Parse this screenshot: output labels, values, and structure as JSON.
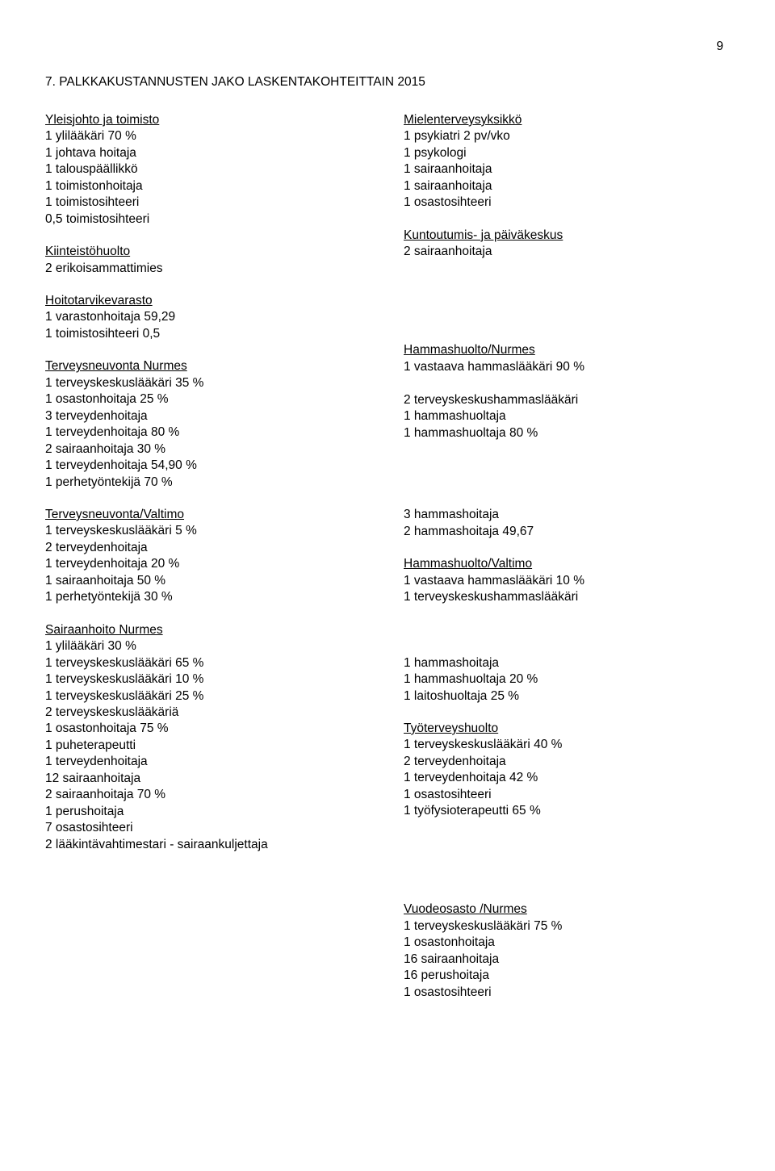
{
  "page_number": "9",
  "heading": "7. PALKKAKUSTANNUSTEN JAKO LASKENTAKOHTEITTAIN 2015",
  "left": [
    {
      "title": "Yleisjohto ja toimisto",
      "lines": [
        "1 ylilääkäri 70 %",
        "1 johtava hoitaja",
        "1 talouspäällikkö",
        "1 toimistonhoitaja",
        "1 toimistosihteeri",
        "0,5 toimistosihteeri"
      ]
    },
    {
      "title": "Kiinteistöhuolto",
      "lines": [
        "2 erikoisammattimies"
      ]
    },
    {
      "title": "Hoitotarvikevarasto",
      "lines": [
        "1 varastonhoitaja 59,29",
        "1 toimistosihteeri 0,5"
      ]
    },
    {
      "title": "Terveysneuvonta Nurmes",
      "lines": [
        "1 terveyskeskuslääkäri 35 %",
        "1 osastonhoitaja 25 %",
        "3 terveydenhoitaja",
        "1 terveydenhoitaja 80 %",
        "2 sairaanhoitaja 30 %",
        "1 terveydenhoitaja 54,90 %",
        "1 perhetyöntekijä 70 %"
      ]
    },
    {
      "title": "Terveysneuvonta/Valtimo",
      "lines": [
        "1 terveyskeskuslääkäri 5 %",
        "2 terveydenhoitaja",
        "1 terveydenhoitaja 20 %",
        "1 sairaanhoitaja 50 %",
        "1 perhetyöntekijä 30 %"
      ]
    },
    {
      "title": "Sairaanhoito Nurmes",
      "lines": [
        "1 ylilääkäri 30 %",
        "1 terveyskeskuslääkäri 65 %",
        "1 terveyskeskuslääkäri 10 %",
        "1 terveyskeskuslääkäri 25 %",
        "2 terveyskeskuslääkäriä",
        "1 osastonhoitaja 75 %",
        "1 puheterapeutti",
        "1 terveydenhoitaja",
        "12 sairaanhoitaja",
        "2 sairaanhoitaja 70 %",
        "1 perushoitaja",
        "7 osastosihteeri",
        "2 lääkintävahtimestari - sairaankuljettaja"
      ]
    }
  ],
  "right": [
    {
      "title": "Mielenterveysyksikkö",
      "lines": [
        "1 psykiatri 2 pv/vko",
        "1 psykologi",
        "1 sairaanhoitaja",
        "1 sairaanhoitaja",
        "1 osastosihteeri"
      ]
    },
    {
      "title": "Kuntoutumis- ja päiväkeskus",
      "lines": [
        "2 sairaanhoitaja"
      ],
      "trailing_blanks": 4
    },
    {
      "title": "Hammashuolto/Nurmes",
      "lines": [
        "1 vastaava hammaslääkäri 90 %",
        "",
        "2 terveyskeskushammaslääkäri",
        "1 hammashuoltaja",
        "1 hammashuoltaja 80 %",
        "",
        "",
        ""
      ]
    },
    {
      "title": "",
      "lines": [
        "3 hammashoitaja",
        "2 hammashoitaja 49,67"
      ],
      "no_title": true
    },
    {
      "title": "Hammashuolto/Valtimo",
      "lines": [
        "1 vastaava hammaslääkäri 10 %",
        "1 terveyskeskushammaslääkäri",
        "",
        ""
      ]
    },
    {
      "title": "",
      "lines": [
        "1 hammashoitaja",
        "1 hammashuoltaja 20 %",
        "1 laitoshuoltaja 25 %"
      ],
      "no_title": true
    },
    {
      "title": "Työterveyshuolto",
      "lines": [
        "1 terveyskeskuslääkäri 40 %",
        "2 terveydenhoitaja",
        "1 terveydenhoitaja 42 %",
        "1 osastosihteeri",
        "1 työfysioterapeutti 65 %",
        "",
        "",
        "",
        ""
      ]
    },
    {
      "title": "Vuodeosasto /Nurmes",
      "lines": [
        "1 terveyskeskuslääkäri 75 %",
        "1 osastonhoitaja",
        "16 sairaanhoitaja",
        "16 perushoitaja",
        "1 osastosihteeri"
      ]
    }
  ]
}
